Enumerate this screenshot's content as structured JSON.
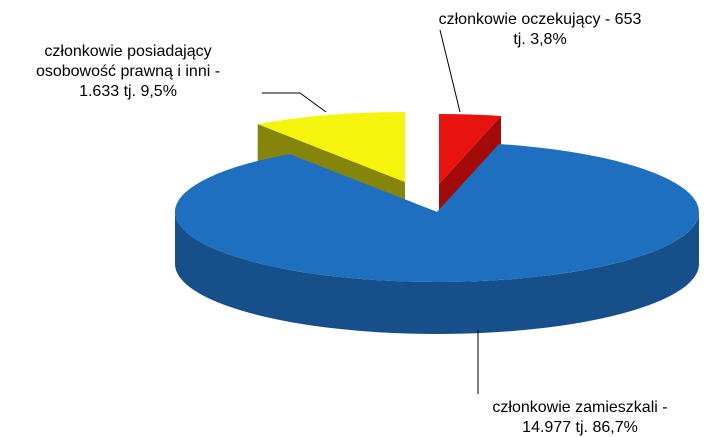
{
  "chart_data": {
    "type": "pie3d",
    "values": [
      3.8,
      86.7,
      9.5
    ],
    "colors": [
      "#e8120f",
      "#1f6fc0",
      "#f4f40d"
    ],
    "side_colors": [
      "#a30b0a",
      "#164f8a",
      "#85850c"
    ],
    "labels": [
      [
        "członkowie oczekujący - 653",
        "tj. 3,8%"
      ],
      [
        "członkowie zamieszkali -",
        "14.977 tj. 86,7%"
      ],
      [
        "członkowie posiadający",
        "osobowość prawną i inni -",
        "1.633 tj. 9,5%"
      ]
    ]
  }
}
